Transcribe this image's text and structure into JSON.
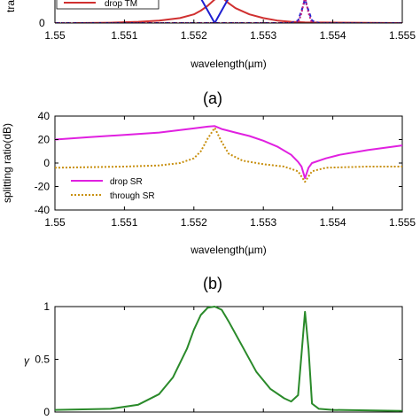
{
  "panel_labels": [
    "(a)",
    "(b)"
  ],
  "chart_data": [
    {
      "type": "line",
      "panel": "a",
      "title": "",
      "xlabel": "wavelength(µm)",
      "ylabel": "tra",
      "xlim": [
        1.55,
        1.555
      ],
      "ylim_visible": [
        0,
        0.2
      ],
      "xticks": [
        1.55,
        1.551,
        1.552,
        1.553,
        1.554,
        1.555
      ],
      "xtick_labels": [
        "1.55",
        "1.551",
        "1.552",
        "1.553",
        "1.554",
        "1.555"
      ],
      "yticks": [
        0
      ],
      "ytick_labels": [
        "0"
      ],
      "legend": {
        "entries": [
          "drop TM"
        ],
        "placement": "top-left"
      },
      "series": [
        {
          "name": "drop TM",
          "color": "#d03030",
          "style": "solid",
          "x": [
            1.5503,
            1.5508,
            1.5512,
            1.5515,
            1.5518,
            1.552,
            1.5521,
            1.5522,
            1.5523,
            1.5524,
            1.5525,
            1.5526,
            1.5528,
            1.553,
            1.5532,
            1.5534,
            1.5536,
            1.555
          ],
          "y": [
            0.0,
            0.003,
            0.01,
            0.02,
            0.04,
            0.07,
            0.1,
            0.14,
            0.19,
            0.21,
            0.16,
            0.12,
            0.07,
            0.04,
            0.02,
            0.01,
            0.005,
            0.0
          ]
        },
        {
          "color": "#1f1fd0",
          "style": "solid",
          "x": [
            1.5521,
            1.5523,
            1.5525
          ],
          "y": [
            0.2,
            0.0,
            0.2
          ]
        },
        {
          "color": "#1f1fd0",
          "style": "dashed",
          "x": [
            1.55,
            1.5534,
            1.5535,
            1.55358,
            1.5536,
            1.55362,
            1.5537,
            1.5538,
            1.555
          ],
          "y": [
            0.0,
            0.0,
            0.02,
            0.15,
            0.21,
            0.15,
            0.02,
            0.0,
            0.0
          ]
        },
        {
          "color": "#c02080",
          "style": "dotted",
          "x": [
            1.55,
            1.5535,
            1.55355,
            1.5536,
            1.55365,
            1.5537,
            1.555
          ],
          "y": [
            0.0,
            0.0,
            0.08,
            0.21,
            0.08,
            0.0,
            0.0
          ]
        }
      ]
    },
    {
      "type": "line",
      "panel": "b",
      "title": "",
      "xlabel": "wavelength(µm)",
      "ylabel": "splitting ratio(dB)",
      "xlim": [
        1.55,
        1.555
      ],
      "ylim": [
        -40,
        40
      ],
      "xticks": [
        1.55,
        1.551,
        1.552,
        1.553,
        1.554,
        1.555
      ],
      "xtick_labels": [
        "1.55",
        "1.551",
        "1.552",
        "1.553",
        "1.554",
        "1.555"
      ],
      "yticks": [
        40,
        20,
        0,
        -20,
        -40
      ],
      "ytick_labels": [
        "40",
        "20",
        "0",
        "-20",
        "-40"
      ],
      "grid": false,
      "legend": {
        "placement": "lower-left"
      },
      "series": [
        {
          "name": "drop SR",
          "color": "#e020e0",
          "style": "solid",
          "x": [
            1.55,
            1.5505,
            1.551,
            1.5515,
            1.552,
            1.5522,
            1.5523,
            1.5524,
            1.5526,
            1.5528,
            1.553,
            1.5532,
            1.5534,
            1.5535,
            1.55355,
            1.5536,
            1.55365,
            1.5537,
            1.5539,
            1.5541,
            1.5545,
            1.555
          ],
          "y": [
            20,
            22,
            24,
            26,
            29.5,
            31,
            31.5,
            29,
            26,
            23,
            19,
            14,
            7,
            1,
            -3,
            -13,
            -4,
            0,
            4,
            7,
            11,
            15
          ]
        },
        {
          "name": "through SR",
          "color": "#c89010",
          "style": "dotted",
          "x": [
            1.55,
            1.551,
            1.5515,
            1.5518,
            1.552,
            1.5521,
            1.5522,
            1.5523,
            1.5524,
            1.5525,
            1.5527,
            1.553,
            1.5533,
            1.5535,
            1.5536,
            1.5537,
            1.5539,
            1.5545,
            1.555
          ],
          "y": [
            -4,
            -3,
            -2,
            0,
            4,
            10,
            21,
            30,
            18,
            8,
            2,
            -1,
            -3,
            -7,
            -16,
            -7,
            -4,
            -3,
            -3
          ]
        }
      ]
    },
    {
      "type": "line",
      "panel": "c",
      "title": "",
      "xlabel": "",
      "ylabel": "γ",
      "xlim": [
        1.55,
        1.555
      ],
      "ylim": [
        0,
        1
      ],
      "yticks": [
        0,
        0.5,
        1
      ],
      "ytick_labels": [
        "0",
        "0.5",
        "1"
      ],
      "series": [
        {
          "color": "#2a8a2a",
          "style": "solid",
          "x": [
            1.55,
            1.5508,
            1.5512,
            1.5515,
            1.5517,
            1.5519,
            1.552,
            1.5521,
            1.5522,
            1.5523,
            1.5524,
            1.5525,
            1.5527,
            1.5529,
            1.5531,
            1.5533,
            1.5534,
            1.5535,
            1.55355,
            1.5536,
            1.55365,
            1.5537,
            1.5538,
            1.554,
            1.555
          ],
          "y": [
            0.02,
            0.03,
            0.07,
            0.17,
            0.33,
            0.6,
            0.78,
            0.92,
            0.99,
            1.0,
            0.97,
            0.86,
            0.62,
            0.38,
            0.22,
            0.13,
            0.1,
            0.16,
            0.55,
            0.95,
            0.6,
            0.08,
            0.03,
            0.02,
            0.01
          ]
        }
      ]
    }
  ]
}
